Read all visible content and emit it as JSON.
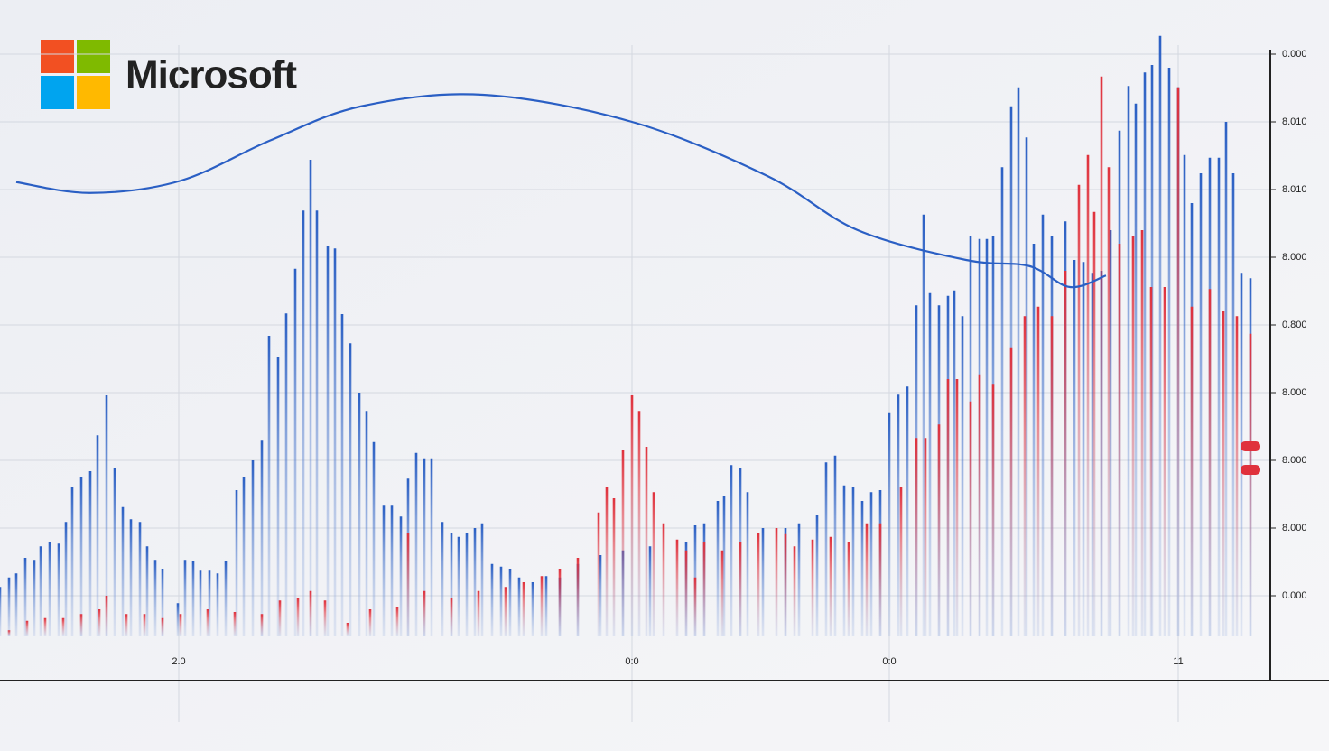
{
  "brand": "Microsoft",
  "chart_data": {
    "type": "bar",
    "xlim": [
      0,
      1385
    ],
    "ylim": [
      -0.6,
      8.6
    ],
    "xticks": [
      {
        "value": 198,
        "label": "2.0"
      },
      {
        "value": 700,
        "label": "0:0"
      },
      {
        "value": 985,
        "label": "0:0"
      },
      {
        "value": 1305,
        "label": "11"
      }
    ],
    "yticks": [
      {
        "value": 0,
        "label": "0.000"
      },
      {
        "value": 1,
        "label": "8.000"
      },
      {
        "value": 2,
        "label": "8.000"
      },
      {
        "value": 3,
        "label": "8.000"
      },
      {
        "value": 4,
        "label": "0.800"
      },
      {
        "value": 5,
        "label": "8.000"
      },
      {
        "value": 6,
        "label": "8.010"
      },
      {
        "value": 7,
        "label": "8.010"
      },
      {
        "value": 8,
        "label": "0.000"
      }
    ],
    "grid": true,
    "series": [
      {
        "color": "#2a5fc4",
        "x": [
          0,
          10,
          18,
          28,
          38,
          45,
          55,
          65,
          73,
          80,
          90,
          100,
          108,
          118,
          127,
          136,
          145,
          155,
          163,
          172,
          180,
          197,
          205,
          214,
          222,
          232,
          241,
          250,
          262,
          270,
          280,
          290,
          298,
          308,
          317,
          327,
          336,
          344,
          351,
          363,
          371,
          379,
          388,
          398,
          406,
          414,
          425,
          434,
          444,
          452,
          461,
          470,
          478,
          490,
          500,
          508,
          517,
          526,
          534,
          545,
          555,
          565,
          575,
          590,
          605,
          620,
          640,
          665,
          690,
          720,
          760,
          770,
          780,
          795,
          802,
          810,
          820,
          828,
          845,
          870,
          885,
          905,
          915,
          925,
          935,
          945,
          955,
          965,
          975,
          985,
          995,
          1005,
          1015,
          1023,
          1030,
          1040,
          1050,
          1057,
          1066,
          1075,
          1085,
          1093,
          1100,
          1110,
          1120,
          1128,
          1137,
          1145,
          1155,
          1165,
          1180,
          1190,
          1200,
          1210,
          1220,
          1230,
          1240,
          1250,
          1258,
          1268,
          1276,
          1285,
          1295,
          1305,
          1312,
          1320,
          1330,
          1340,
          1350,
          1358,
          1366,
          1375,
          1385
        ],
        "values": [
          0.13,
          0.27,
          0.33,
          0.56,
          0.53,
          0.73,
          0.8,
          0.77,
          1.09,
          1.6,
          1.76,
          1.84,
          2.37,
          2.96,
          1.89,
          1.31,
          1.13,
          1.09,
          0.73,
          0.53,
          0.4,
          -0.11,
          0.53,
          0.51,
          0.37,
          0.37,
          0.33,
          0.51,
          1.56,
          1.76,
          2,
          2.29,
          3.84,
          3.53,
          4.17,
          4.83,
          5.69,
          6.44,
          5.69,
          5.17,
          5.13,
          4.16,
          3.73,
          3,
          2.73,
          2.27,
          1.33,
          1.33,
          1.17,
          1.73,
          2.11,
          2.03,
          2.03,
          1.09,
          0.93,
          0.87,
          0.93,
          1,
          1.07,
          0.47,
          0.43,
          0.4,
          0.27,
          0.2,
          0.29,
          0.27,
          0.47,
          0.6,
          0.67,
          0.73,
          0.8,
          1.04,
          1.07,
          1.4,
          1.47,
          1.93,
          1.89,
          1.53,
          1,
          1,
          1.07,
          1.2,
          1.97,
          2.07,
          1.63,
          1.6,
          1.4,
          1.53,
          1.56,
          2.71,
          2.97,
          3.09,
          4.29,
          5.63,
          4.47,
          4.29,
          4.43,
          4.51,
          4.13,
          5.31,
          5.27,
          5.27,
          5.31,
          6.33,
          7.23,
          7.51,
          6.77,
          5.2,
          5.63,
          5.31,
          5.53,
          4.96,
          4.93,
          4.77,
          4.8,
          5.4,
          6.87,
          7.53,
          7.27,
          7.73,
          7.84,
          8.27,
          7.8,
          7.51,
          6.51,
          5.8,
          6.24,
          6.47,
          6.47,
          7,
          6.24,
          4.77,
          4.69
        ]
      },
      {
        "color": "#e0313c",
        "x": [
          10,
          30,
          50,
          70,
          90,
          110,
          118,
          140,
          160,
          180,
          200,
          230,
          260,
          290,
          310,
          330,
          344,
          360,
          385,
          410,
          440,
          452,
          470,
          500,
          530,
          560,
          580,
          600,
          620,
          640,
          663,
          672,
          680,
          690,
          700,
          708,
          716,
          724,
          735,
          750,
          760,
          770,
          780,
          800,
          820,
          840,
          860,
          870,
          880,
          900,
          920,
          940,
          960,
          975,
          998,
          1015,
          1025,
          1040,
          1050,
          1060,
          1075,
          1085,
          1100,
          1120,
          1135,
          1150,
          1165,
          1180,
          1195,
          1205,
          1212,
          1220,
          1228,
          1240,
          1255,
          1265,
          1275,
          1290,
          1305,
          1320,
          1340,
          1355,
          1370,
          1385
        ],
        "values": [
          -0.51,
          -0.37,
          -0.33,
          -0.33,
          -0.27,
          -0.2,
          0,
          -0.27,
          -0.27,
          -0.33,
          -0.27,
          -0.2,
          -0.24,
          -0.27,
          -0.07,
          -0.03,
          0.07,
          -0.07,
          -0.4,
          -0.2,
          -0.16,
          0.93,
          0.07,
          -0.03,
          0.07,
          0.13,
          0.2,
          0.29,
          0.4,
          0.56,
          1.23,
          1.6,
          1.44,
          2.16,
          2.96,
          2.73,
          2.2,
          1.53,
          1.07,
          0.83,
          0.67,
          0.27,
          0.8,
          0.67,
          0.8,
          0.93,
          1,
          0.91,
          0.73,
          0.83,
          0.87,
          0.8,
          1.07,
          1.07,
          1.6,
          2.33,
          2.33,
          2.53,
          3.2,
          3.2,
          2.87,
          3.27,
          3.13,
          3.67,
          4.13,
          4.27,
          4.13,
          4.8,
          6.07,
          6.51,
          5.67,
          7.67,
          6.33,
          5.2,
          5.31,
          5.4,
          4.56,
          4.56,
          7.51,
          4.27,
          4.53,
          4.2,
          4.13,
          3.87
        ]
      },
      {
        "color": "#2a5fc4",
        "line": true,
        "x": [
          18,
          100,
          200,
          300,
          400,
          535,
          700,
          850,
          950,
          1070,
          1140,
          1185,
          1225
        ],
        "values": [
          6.11,
          5.95,
          6.13,
          6.73,
          7.23,
          7.4,
          7,
          6.2,
          5.4,
          4.96,
          4.87,
          4.56,
          4.73
        ]
      }
    ]
  }
}
